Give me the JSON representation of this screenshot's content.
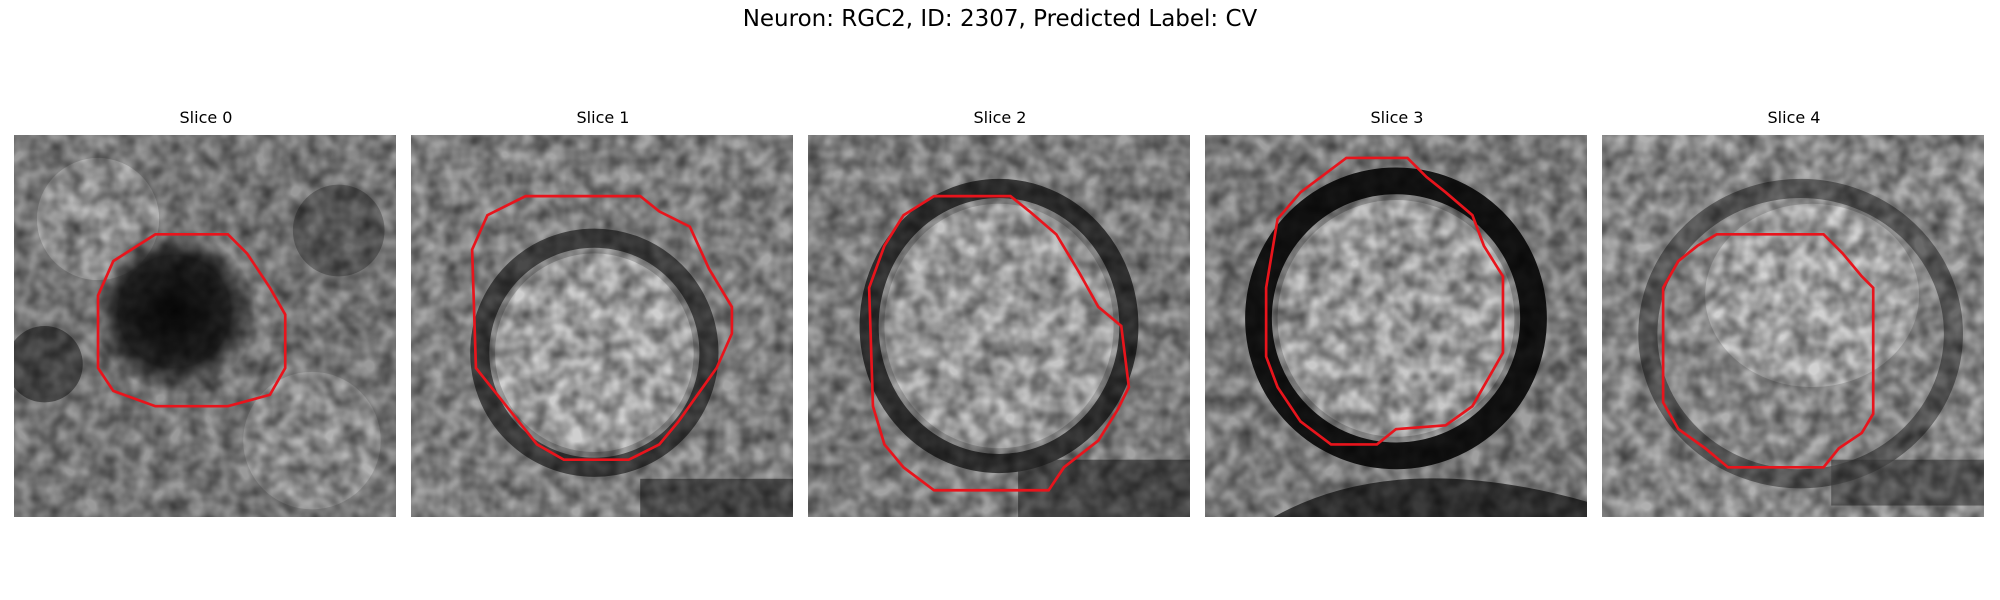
{
  "figure": {
    "title": "Neuron: RGC2, ID: 2307, Predicted Label: CV"
  },
  "panels": [
    {
      "label": "Slice 0"
    },
    {
      "label": "Slice 1"
    },
    {
      "label": "Slice 2"
    },
    {
      "label": "Slice 3"
    },
    {
      "label": "Slice 4"
    }
  ],
  "colors": {
    "contour": "#e8141c"
  }
}
